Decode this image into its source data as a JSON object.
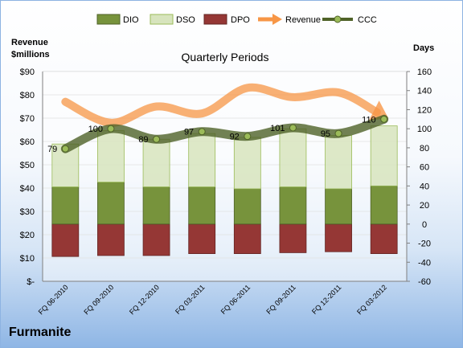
{
  "chart_data": {
    "type": "bar",
    "title": "Quarterly Periods",
    "left_axis_label_line1": "Revenue",
    "left_axis_label_line2": "$millions",
    "right_axis_label": "Days",
    "company": "Furmanite",
    "categories": [
      "FQ 06-2010",
      "FQ 09-2010",
      "FQ 12-2010",
      "FQ 03-2011",
      "FQ 06-2011",
      "FQ 09-2011",
      "FQ 12-2011",
      "FQ 03-2012"
    ],
    "left_ticks": [
      "$-",
      "$10",
      "$20",
      "$30",
      "$40",
      "$50",
      "$60",
      "$70",
      "$80",
      "$90"
    ],
    "right_ticks": [
      "-60",
      "-40",
      "-20",
      "0",
      "20",
      "40",
      "60",
      "80",
      "100",
      "120",
      "140",
      "160"
    ],
    "ylim_left": [
      0,
      90
    ],
    "ylim_right": [
      -60,
      160
    ],
    "colors": {
      "dio": "#77933c",
      "dso": "#d7e4bd",
      "dpo": "#953735",
      "revenue": "#f79646",
      "ccc": "#4f6228",
      "ccc_marker": "#9bbb59"
    },
    "series": [
      {
        "name": "DIO",
        "values": [
          39,
          44,
          39,
          39,
          37,
          39,
          37,
          40
        ]
      },
      {
        "name": "DSO",
        "values": [
          45,
          54,
          50,
          56,
          54,
          61,
          56,
          63
        ]
      },
      {
        "name": "DPO",
        "values": [
          -34,
          -33,
          -33,
          -31,
          -31,
          -30,
          -29,
          -31
        ]
      },
      {
        "name": "Revenue",
        "values": [
          77,
          68,
          75,
          72,
          83,
          79,
          81,
          71
        ]
      },
      {
        "name": "CCC",
        "values": [
          79,
          100,
          89,
          97,
          92,
          101,
          95,
          110
        ]
      }
    ],
    "ccc_labels": [
      "79",
      "100",
      "89",
      "97",
      "92",
      "101",
      "95",
      "110"
    ]
  }
}
